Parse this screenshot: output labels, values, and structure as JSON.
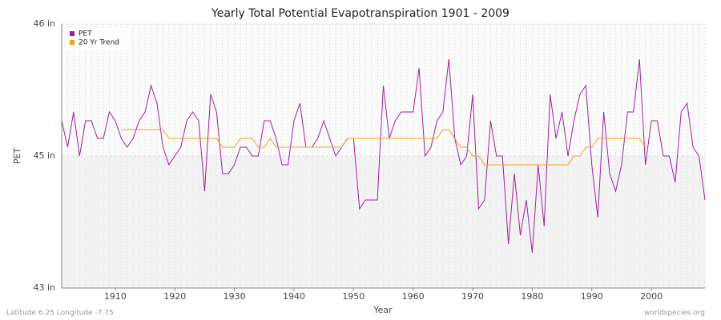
{
  "chart_data": {
    "type": "line",
    "title": "Yearly Total Potential Evapotranspiration 1901 - 2009",
    "x_label": "Year",
    "y_label": "PET",
    "footer_left": "Latitude 6.25 Longitude -7.75",
    "footer_right": "worldspecies.org",
    "x": [
      1901,
      1902,
      1903,
      1904,
      1905,
      1906,
      1907,
      1908,
      1909,
      1910,
      1911,
      1912,
      1913,
      1914,
      1915,
      1916,
      1917,
      1918,
      1919,
      1920,
      1921,
      1922,
      1923,
      1924,
      1925,
      1926,
      1927,
      1928,
      1929,
      1930,
      1931,
      1932,
      1933,
      1934,
      1935,
      1936,
      1937,
      1938,
      1939,
      1940,
      1941,
      1942,
      1943,
      1944,
      1945,
      1946,
      1947,
      1948,
      1949,
      1950,
      1951,
      1952,
      1953,
      1954,
      1955,
      1956,
      1957,
      1958,
      1959,
      1960,
      1961,
      1962,
      1963,
      1964,
      1965,
      1966,
      1967,
      1968,
      1969,
      1970,
      1971,
      1972,
      1973,
      1974,
      1975,
      1976,
      1977,
      1978,
      1979,
      1980,
      1981,
      1982,
      1983,
      1984,
      1985,
      1986,
      1987,
      1988,
      1989,
      1990,
      1991,
      1992,
      1993,
      1994,
      1995,
      1996,
      1997,
      1998,
      1999,
      2000,
      2001,
      2002,
      2003,
      2004,
      2005,
      2006,
      2007,
      2008,
      2009
    ],
    "series": [
      {
        "name": "PET",
        "color": "#a020a0",
        "values": [
          45.3,
          45.0,
          45.4,
          44.9,
          45.3,
          45.3,
          45.1,
          45.1,
          45.4,
          45.3,
          45.1,
          45.0,
          45.1,
          45.3,
          45.4,
          45.7,
          45.5,
          45.0,
          44.8,
          44.9,
          45.0,
          45.3,
          45.4,
          45.3,
          44.5,
          45.6,
          45.4,
          44.7,
          44.7,
          44.8,
          45.0,
          45.0,
          44.9,
          44.9,
          45.3,
          45.3,
          45.1,
          44.8,
          44.8,
          45.3,
          45.5,
          45.0,
          45.0,
          45.1,
          45.3,
          45.1,
          44.9,
          45.0,
          45.1,
          45.1,
          44.3,
          44.4,
          44.4,
          44.4,
          45.7,
          45.1,
          45.3,
          45.4,
          45.4,
          45.4,
          45.9,
          44.9,
          45.0,
          45.3,
          45.4,
          46.0,
          45.1,
          44.8,
          44.9,
          45.6,
          44.3,
          44.4,
          45.3,
          44.9,
          44.9,
          43.9,
          44.7,
          44.0,
          44.4,
          43.8,
          44.8,
          44.1,
          45.6,
          45.1,
          45.4,
          44.9,
          45.3,
          45.6,
          45.7,
          44.8,
          44.2,
          45.4,
          44.7,
          44.5,
          44.8,
          45.4,
          45.4,
          46.0,
          44.8,
          45.3,
          45.3,
          44.9,
          44.9,
          44.6,
          45.4,
          45.5,
          45.0,
          44.9,
          44.4
        ]
      },
      {
        "name": "20 Yr Trend",
        "color": "#f0a020",
        "values": [
          null,
          null,
          null,
          null,
          null,
          null,
          null,
          null,
          null,
          null,
          45.2,
          45.2,
          45.2,
          45.2,
          45.2,
          45.2,
          45.2,
          45.2,
          45.1,
          45.1,
          45.1,
          45.1,
          45.1,
          45.1,
          45.1,
          45.1,
          45.1,
          45.0,
          45.0,
          45.0,
          45.1,
          45.1,
          45.1,
          45.0,
          45.0,
          45.1,
          45.0,
          45.0,
          45.0,
          45.0,
          45.0,
          45.0,
          45.0,
          45.0,
          45.0,
          45.0,
          45.0,
          45.0,
          45.1,
          45.1,
          45.1,
          45.1,
          45.1,
          45.1,
          45.1,
          45.1,
          45.1,
          45.1,
          45.1,
          45.1,
          45.1,
          45.1,
          45.1,
          45.1,
          45.2,
          45.2,
          45.1,
          45.0,
          45.0,
          44.9,
          44.9,
          44.8,
          44.8,
          44.8,
          44.8,
          44.8,
          44.8,
          44.8,
          44.8,
          44.8,
          44.8,
          44.8,
          44.8,
          44.8,
          44.8,
          44.8,
          44.9,
          44.9,
          45.0,
          45.0,
          45.1,
          45.1,
          45.1,
          45.1,
          45.1,
          45.1,
          45.1,
          45.1,
          45.0,
          null,
          null,
          null,
          null,
          null,
          null,
          null,
          null,
          null,
          null
        ]
      }
    ],
    "xlim": [
      1901,
      2009
    ],
    "xticks": [
      1910,
      1920,
      1930,
      1940,
      1950,
      1960,
      1970,
      1980,
      1990,
      2000
    ],
    "ylim": [
      43.4,
      46.4
    ],
    "yticks": [
      {
        "value": 43.4,
        "label": "43 in"
      },
      {
        "value": 44.9,
        "label": "45 in"
      },
      {
        "value": 46.4,
        "label": "46 in"
      }
    ],
    "grid": true,
    "legend": "top-left"
  }
}
